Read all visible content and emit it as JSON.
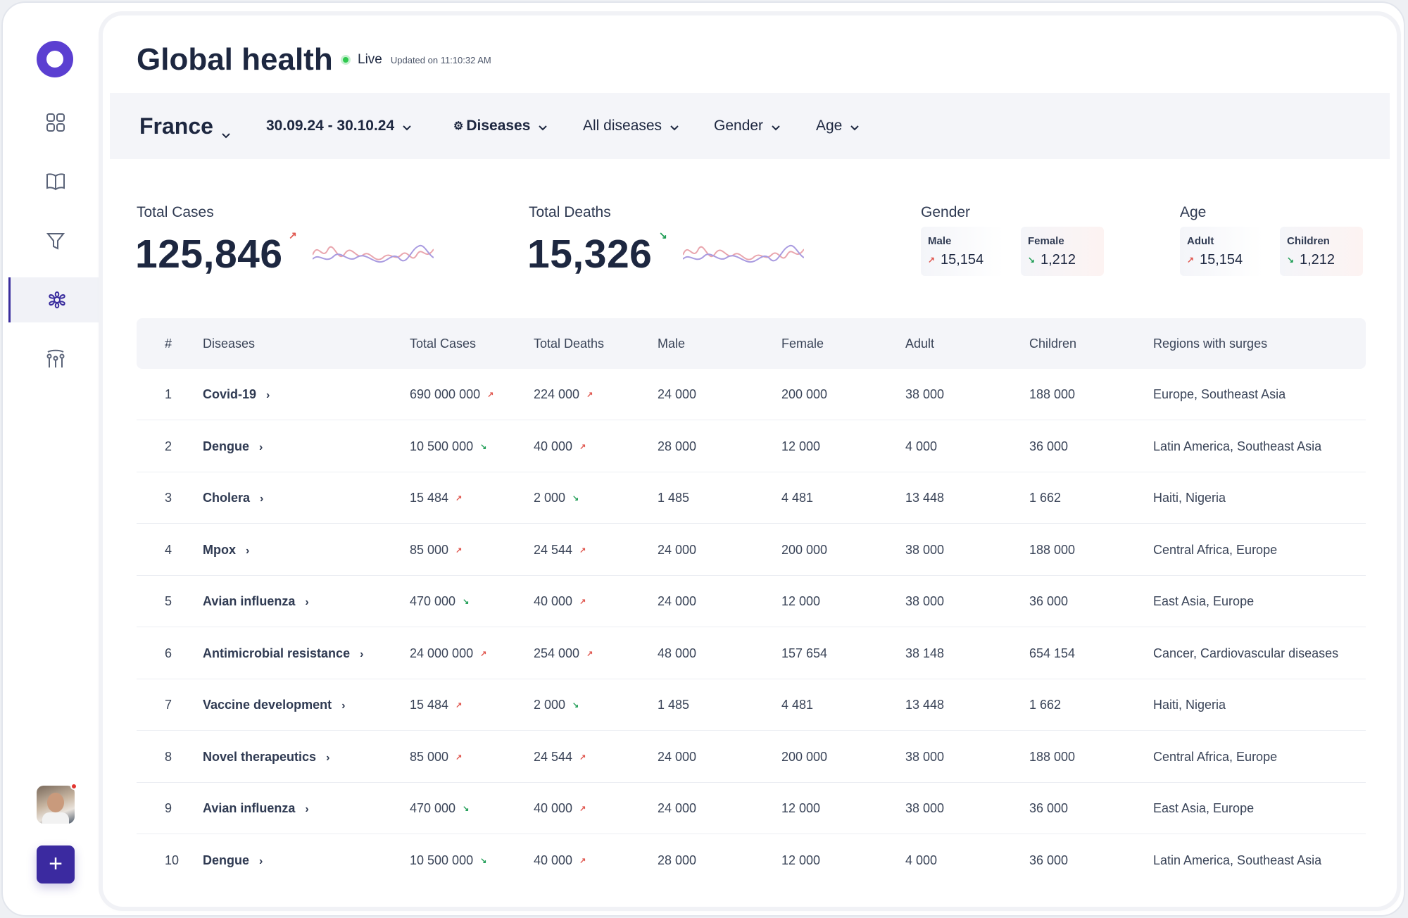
{
  "app": {
    "title": "Global health",
    "live_label": "Live",
    "updated_label": "Updated on 11:10:32 AM"
  },
  "sidebar": {
    "items": [
      {
        "name": "dashboard",
        "icon": "grid-icon"
      },
      {
        "name": "library",
        "icon": "book-icon"
      },
      {
        "name": "filters",
        "icon": "filter-icon"
      },
      {
        "name": "diseases",
        "icon": "virus-icon",
        "active": true
      },
      {
        "name": "analytics",
        "icon": "chart-sliders-icon"
      }
    ],
    "add_label": "+"
  },
  "filters": {
    "country": "France",
    "date_range": "30.09.24 - 30.10.24",
    "category": "Diseases",
    "disease": "All diseases",
    "gender": "Gender",
    "age": "Age"
  },
  "stats": {
    "total_cases": {
      "label": "Total Cases",
      "value": "125,846",
      "trend": "up"
    },
    "total_deaths": {
      "label": "Total Deaths",
      "value": "15,326",
      "trend": "down"
    },
    "gender": {
      "label": "Gender",
      "male": {
        "label": "Male",
        "value": "15,154",
        "trend": "up"
      },
      "female": {
        "label": "Female",
        "value": "1,212",
        "trend": "down"
      }
    },
    "age": {
      "label": "Age",
      "adult": {
        "label": "Adult",
        "value": "15,154",
        "trend": "up"
      },
      "children": {
        "label": "Children",
        "value": "1,212",
        "trend": "down"
      }
    }
  },
  "colors": {
    "accent": "#3b2aa0",
    "up": "#e0574f",
    "down": "#1f9d55",
    "live": "#2fc94f"
  },
  "table": {
    "headers": [
      "#",
      "Diseases",
      "Total Cases",
      "Total Deaths",
      "Male",
      "Female",
      "Adult",
      "Children",
      "Regions with surges"
    ],
    "rows": [
      {
        "num": "1",
        "name": "Covid-19",
        "cases": "690 000 000",
        "cases_trend": "up",
        "deaths": "224 000",
        "deaths_trend": "up",
        "male": "24 000",
        "female": "200 000",
        "adult": "38 000",
        "children": "188 000",
        "regions": "Europe, Southeast Asia"
      },
      {
        "num": "2",
        "name": "Dengue",
        "cases": "10 500 000",
        "cases_trend": "down",
        "deaths": "40 000",
        "deaths_trend": "up",
        "male": "28 000",
        "female": "12 000",
        "adult": "4 000",
        "children": "36 000",
        "regions": "Latin America, Southeast Asia"
      },
      {
        "num": "3",
        "name": "Cholera",
        "cases": "15 484",
        "cases_trend": "up",
        "deaths": "2 000",
        "deaths_trend": "down",
        "male": "1 485",
        "female": "4 481",
        "adult": "13 448",
        "children": "1 662",
        "regions": "Haiti, Nigeria"
      },
      {
        "num": "4",
        "name": "Mpox",
        "cases": "85 000",
        "cases_trend": "up",
        "deaths": "24 544",
        "deaths_trend": "up",
        "male": "24 000",
        "female": "200 000",
        "adult": "38 000",
        "children": "188 000",
        "regions": "Central Africa, Europe"
      },
      {
        "num": "5",
        "name": "Avian influenza",
        "cases": "470 000",
        "cases_trend": "down",
        "deaths": "40 000",
        "deaths_trend": "up",
        "male": "24 000",
        "female": "12 000",
        "adult": "38 000",
        "children": "36 000",
        "regions": "East Asia, Europe"
      },
      {
        "num": "6",
        "name": "Antimicrobial resistance",
        "cases": "24 000 000",
        "cases_trend": "up",
        "deaths": "254 000",
        "deaths_trend": "up",
        "male": "48 000",
        "female": "157 654",
        "adult": "38 148",
        "children": "654 154",
        "regions": "Cancer, Cardiovascular diseases"
      },
      {
        "num": "7",
        "name": "Vaccine development",
        "cases": "15 484",
        "cases_trend": "up",
        "deaths": "2 000",
        "deaths_trend": "down",
        "male": "1 485",
        "female": "4 481",
        "adult": "13 448",
        "children": "1 662",
        "regions": "Haiti, Nigeria"
      },
      {
        "num": "8",
        "name": "Novel therapeutics",
        "cases": "85 000",
        "cases_trend": "up",
        "deaths": "24 544",
        "deaths_trend": "up",
        "male": "24 000",
        "female": "200 000",
        "adult": "38 000",
        "children": "188 000",
        "regions": "Central Africa, Europe"
      },
      {
        "num": "9",
        "name": "Avian influenza",
        "cases": "470 000",
        "cases_trend": "down",
        "deaths": "40 000",
        "deaths_trend": "up",
        "male": "24 000",
        "female": "12 000",
        "adult": "38 000",
        "children": "36 000",
        "regions": "East Asia, Europe"
      },
      {
        "num": "10",
        "name": "Dengue",
        "cases": "10 500 000",
        "cases_trend": "down",
        "deaths": "40 000",
        "deaths_trend": "up",
        "male": "28 000",
        "female": "12 000",
        "adult": "4 000",
        "children": "36 000",
        "regions": "Latin America, Southeast Asia"
      }
    ]
  }
}
